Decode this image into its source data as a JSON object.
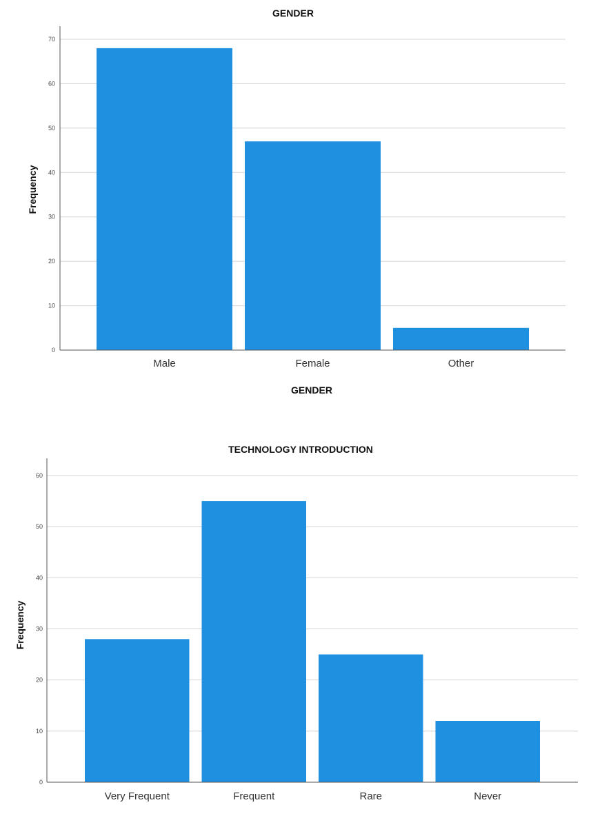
{
  "chart_data": [
    {
      "type": "bar",
      "title": "GENDER",
      "xlabel": "GENDER",
      "ylabel": "Frequency",
      "categories": [
        "Male",
        "Female",
        "Other"
      ],
      "values": [
        68,
        47,
        5
      ],
      "ylim": [
        0,
        70
      ],
      "yticks": [
        "0",
        "10",
        "20",
        "30",
        "40",
        "50",
        "60",
        "70"
      ],
      "grid": true,
      "bar_color": "#1f8fe0"
    },
    {
      "type": "bar",
      "title": "TECHNOLOGY INTRODUCTION",
      "xlabel": "",
      "ylabel": "Frequency",
      "categories": [
        "Very Frequent",
        "Frequent",
        "Rare",
        "Never"
      ],
      "values": [
        28,
        55,
        25,
        12
      ],
      "ylim": [
        0,
        60
      ],
      "yticks": [
        "0",
        "10",
        "20",
        "30",
        "40",
        "50",
        "60"
      ],
      "grid": true,
      "bar_color": "#1f8fe0"
    }
  ]
}
